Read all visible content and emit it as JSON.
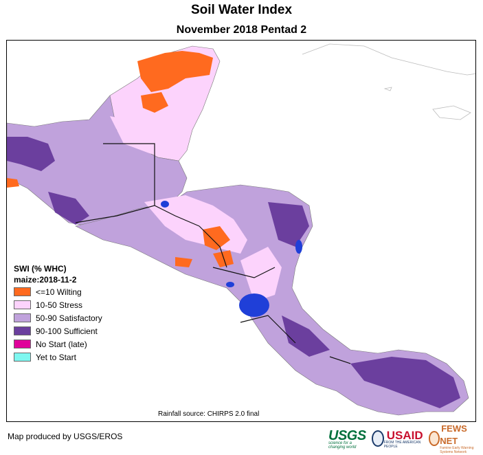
{
  "header": {
    "title": "Soil Water Index",
    "subtitle": "November 2018 Pentad 2"
  },
  "legend": {
    "title": "SWI (% WHC)",
    "subtitle": "maize:2018-11-2",
    "items": [
      {
        "label": "<=10 Wilting",
        "color": "#ff6a1f"
      },
      {
        "label": "10-50 Stress",
        "color": "#fcd3fc"
      },
      {
        "label": "50-90 Satisfactory",
        "color": "#c0a2dc"
      },
      {
        "label": "90-100 Sufficient",
        "color": "#6b3f9e"
      },
      {
        "label": "No Start (late)",
        "color": "#e0009a"
      },
      {
        "label": "Yet to Start",
        "color": "#7ef7f0"
      }
    ]
  },
  "footer": {
    "rainfall_source": "Rainfall source: CHIRPS 2.0 final",
    "producer": "Map produced by USGS/EROS"
  },
  "logos": {
    "usgs": "USGS",
    "usgs_tagline": "science for a changing world",
    "usaid": "USAID",
    "usaid_tagline": "FROM THE AMERICAN PEOPLE",
    "fews": "FEWS NET",
    "fews_tagline": "Famine Early Warning Systems Network"
  }
}
